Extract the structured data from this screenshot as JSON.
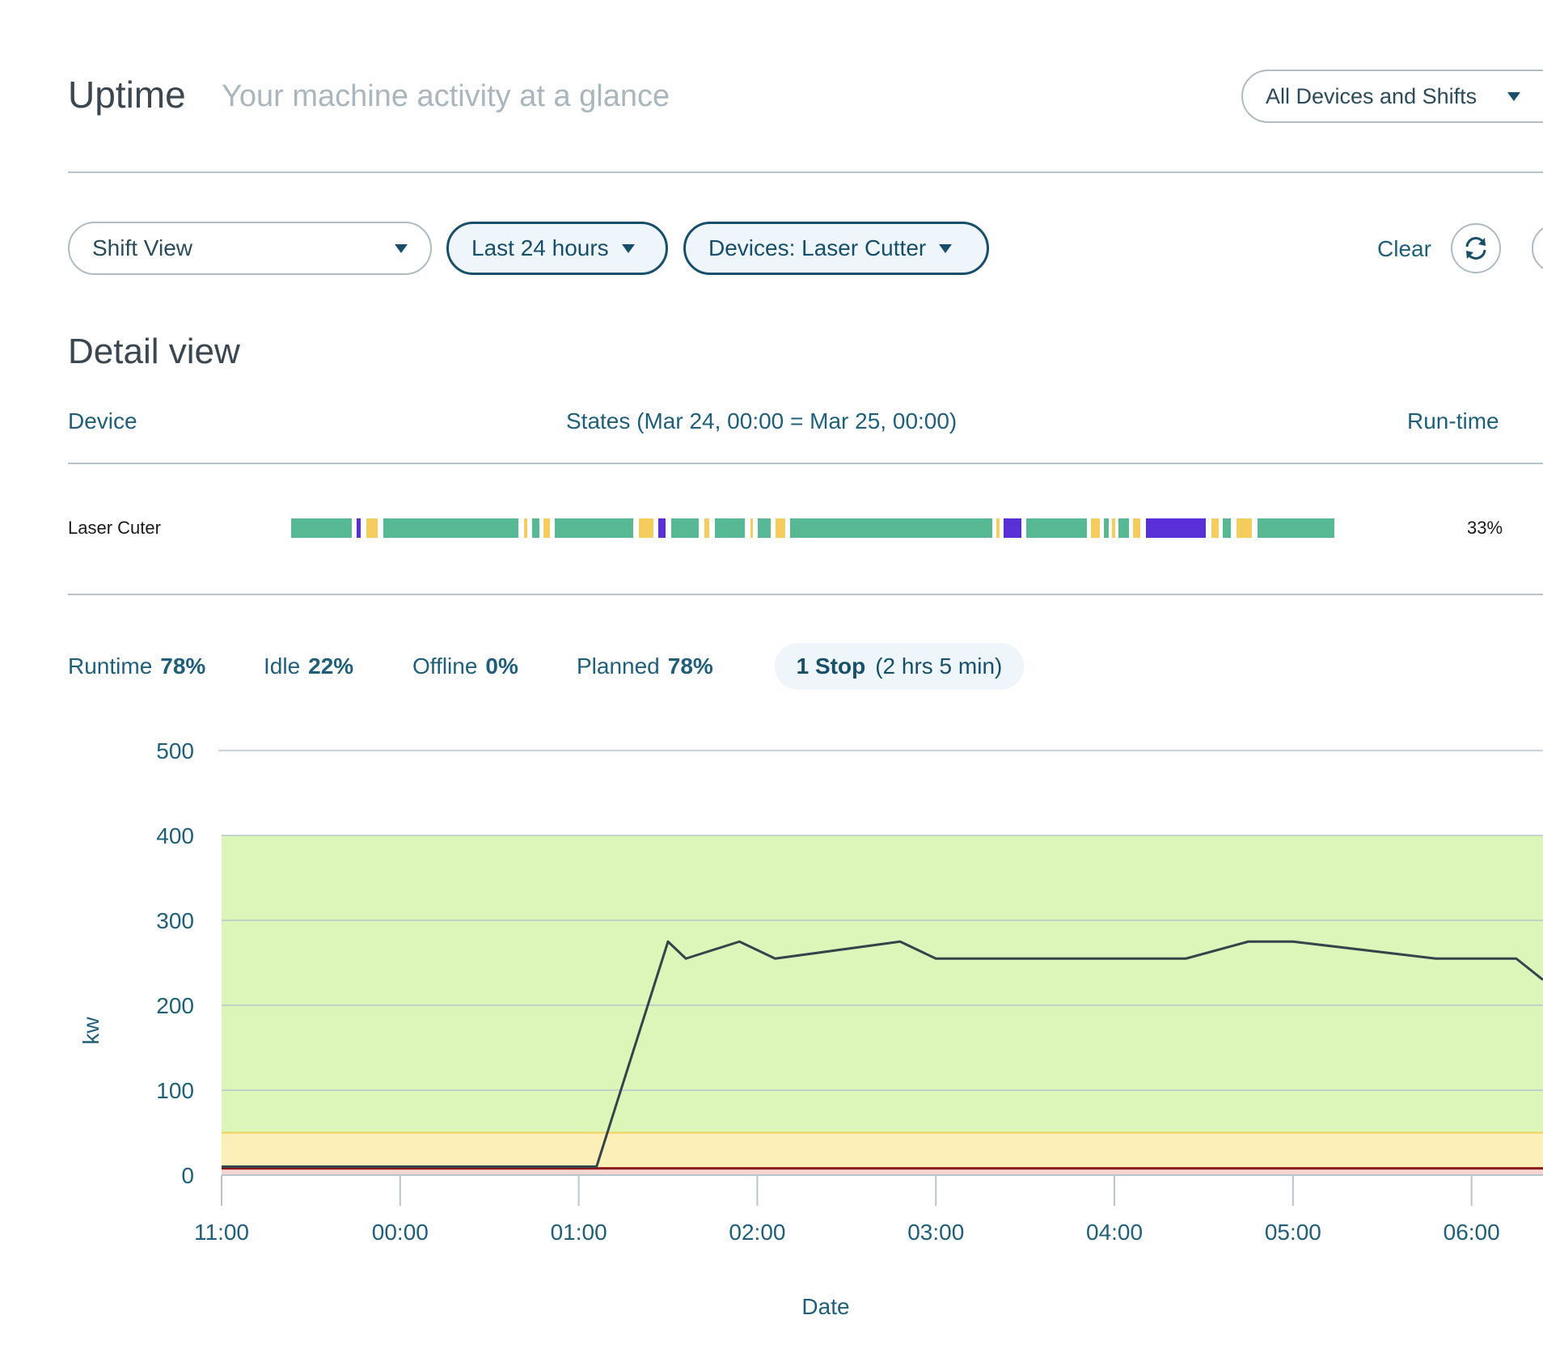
{
  "header": {
    "title": "Uptime",
    "subtitle": "Your machine activity at a glance",
    "scope_select": "All Devices and Shifts"
  },
  "filters": {
    "view_select": "Shift View",
    "time_range": "Last 24 hours",
    "devices": "Devices: Laser Cutter",
    "clear_label": "Clear"
  },
  "detail": {
    "title": "Detail view",
    "columns": {
      "device": "Device",
      "states": "States (Mar 24, 00:00 = Mar 25, 00:00)",
      "runtime": "Run-time"
    },
    "rows": [
      {
        "device": "Laser Cuter",
        "runtime": "33%",
        "states": [
          {
            "state": "running",
            "start": 0.0,
            "end": 0.058
          },
          {
            "state": "stopped",
            "start": 0.063,
            "end": 0.067
          },
          {
            "state": "idle",
            "start": 0.072,
            "end": 0.083
          },
          {
            "state": "running",
            "start": 0.088,
            "end": 0.218
          },
          {
            "state": "idle",
            "start": 0.223,
            "end": 0.226
          },
          {
            "state": "running",
            "start": 0.231,
            "end": 0.238
          },
          {
            "state": "idle",
            "start": 0.242,
            "end": 0.248
          },
          {
            "state": "running",
            "start": 0.253,
            "end": 0.328
          },
          {
            "state": "idle",
            "start": 0.333,
            "end": 0.347
          },
          {
            "state": "stopped",
            "start": 0.352,
            "end": 0.359
          },
          {
            "state": "running",
            "start": 0.364,
            "end": 0.391
          },
          {
            "state": "idle",
            "start": 0.396,
            "end": 0.401
          },
          {
            "state": "running",
            "start": 0.406,
            "end": 0.435
          },
          {
            "state": "idle",
            "start": 0.44,
            "end": 0.443
          },
          {
            "state": "running",
            "start": 0.447,
            "end": 0.46
          },
          {
            "state": "idle",
            "start": 0.464,
            "end": 0.474
          },
          {
            "state": "running",
            "start": 0.478,
            "end": 0.672
          },
          {
            "state": "idle",
            "start": 0.676,
            "end": 0.679
          },
          {
            "state": "stopped",
            "start": 0.683,
            "end": 0.7
          },
          {
            "state": "running",
            "start": 0.705,
            "end": 0.763
          },
          {
            "state": "idle",
            "start": 0.767,
            "end": 0.775
          },
          {
            "state": "running",
            "start": 0.779,
            "end": 0.784
          },
          {
            "state": "idle",
            "start": 0.787,
            "end": 0.79
          },
          {
            "state": "running",
            "start": 0.793,
            "end": 0.803
          },
          {
            "state": "idle",
            "start": 0.807,
            "end": 0.814
          },
          {
            "state": "stopped",
            "start": 0.819,
            "end": 0.877
          },
          {
            "state": "idle",
            "start": 0.882,
            "end": 0.889
          },
          {
            "state": "running",
            "start": 0.893,
            "end": 0.901
          },
          {
            "state": "idle",
            "start": 0.906,
            "end": 0.921
          },
          {
            "state": "running",
            "start": 0.926,
            "end": 1.0
          }
        ]
      }
    ]
  },
  "state_colors": {
    "running": "#57b894",
    "idle": "#f4cd5c",
    "stopped": "#5930d8"
  },
  "stats": {
    "runtime_label": "Runtime",
    "runtime_value": "78%",
    "idle_label": "Idle",
    "idle_value": "22%",
    "offline_label": "Offline",
    "offline_value": "0%",
    "planned_label": "Planned",
    "planned_value": "78%",
    "stop_count": "1 Stop",
    "stop_duration": "(2 hrs 5 min)"
  },
  "chart_data": {
    "type": "line",
    "xlabel": "Date",
    "ylabel": "kw",
    "ylim": [
      0,
      500
    ],
    "y_ticks": [
      0,
      100,
      200,
      300,
      400,
      500
    ],
    "x_ticks": [
      "11:00",
      "00:00",
      "01:00",
      "02:00",
      "03:00",
      "04:00",
      "05:00",
      "06:00"
    ],
    "x_tick_hours": [
      0,
      1,
      2,
      3,
      4,
      5,
      6,
      7
    ],
    "x_range_hours": [
      0,
      7.4
    ],
    "bands": [
      {
        "from": 50,
        "to": 400,
        "color": "#dcf5b8"
      },
      {
        "from": 8,
        "to": 50,
        "color": "#fdefb8"
      },
      {
        "from": 0,
        "to": 8,
        "color": "#f6d4d0"
      }
    ],
    "threshold_line": {
      "value": 50,
      "color": "#f1cf5d"
    },
    "baseline_line": {
      "value": 8,
      "color": "#8b1a1a"
    },
    "grid": true,
    "series": [
      {
        "color": "#35434b",
        "points": [
          [
            0.0,
            10
          ],
          [
            2.1,
            10
          ],
          [
            2.5,
            275
          ],
          [
            2.6,
            255
          ],
          [
            2.9,
            275
          ],
          [
            3.1,
            255
          ],
          [
            3.8,
            275
          ],
          [
            4.0,
            255
          ],
          [
            5.4,
            255
          ],
          [
            5.75,
            275
          ],
          [
            6.0,
            275
          ],
          [
            6.8,
            255
          ],
          [
            7.25,
            255
          ],
          [
            7.4,
            230
          ]
        ]
      }
    ]
  }
}
